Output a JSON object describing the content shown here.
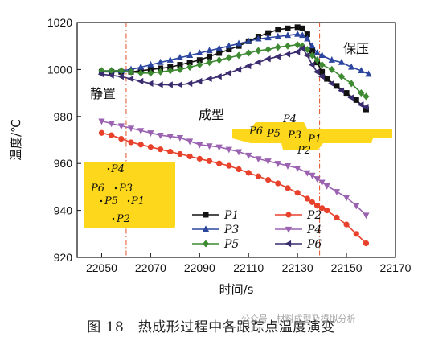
{
  "chart_data": {
    "type": "line",
    "xlabel": "时间/s",
    "ylabel": "温度/℃",
    "xlim": [
      22040,
      22170
    ],
    "ylim": [
      920,
      1020
    ],
    "xticks": [
      22050,
      22070,
      22090,
      22110,
      22130,
      22150,
      22170
    ],
    "yticks": [
      920,
      940,
      960,
      980,
      1000,
      1020
    ],
    "phase_boundaries": [
      22060,
      22139
    ],
    "annotations": [
      "静置",
      "成型",
      "保压"
    ],
    "legend_position": "bottom-right",
    "series": [
      {
        "name": "P1",
        "color": "#111111",
        "marker": "square",
        "x": [
          22050,
          22054,
          22058,
          22062,
          22066,
          22070,
          22074,
          22078,
          22082,
          22086,
          22090,
          22094,
          22098,
          22102,
          22106,
          22110,
          22114,
          22118,
          22122,
          22126,
          22130,
          22132,
          22134,
          22136,
          22138,
          22140,
          22142,
          22146,
          22150,
          22154,
          22158
        ],
        "y": [
          999,
          999,
          999,
          999,
          999.5,
          1000,
          1000.5,
          1001,
          1002,
          1003,
          1004,
          1005.5,
          1007,
          1008.5,
          1010,
          1012,
          1014,
          1015.5,
          1017,
          1017.5,
          1018,
          1017.5,
          1015,
          1008,
          1003,
          999,
          996,
          993,
          990,
          987,
          983
        ]
      },
      {
        "name": "P2",
        "color": "#e8412b",
        "marker": "circle",
        "x": [
          22050,
          22054,
          22058,
          22062,
          22066,
          22070,
          22074,
          22078,
          22082,
          22086,
          22090,
          22094,
          22098,
          22102,
          22106,
          22110,
          22114,
          22118,
          22122,
          22126,
          22130,
          22134,
          22136,
          22138,
          22140,
          22142,
          22146,
          22150,
          22154,
          22158
        ],
        "y": [
          973,
          972,
          970.5,
          969,
          968,
          967,
          966,
          965,
          964,
          963,
          962,
          961,
          960,
          959,
          957.5,
          956,
          954.5,
          953,
          951.5,
          949.5,
          947.5,
          945,
          943.5,
          942,
          941,
          940,
          937,
          934,
          930,
          926
        ]
      },
      {
        "name": "P3",
        "color": "#2c46a0",
        "marker": "triangle-up",
        "x": [
          22050,
          22054,
          22058,
          22062,
          22066,
          22070,
          22074,
          22078,
          22082,
          22086,
          22090,
          22094,
          22098,
          22102,
          22106,
          22110,
          22114,
          22118,
          22122,
          22126,
          22130,
          22132,
          22134,
          22136,
          22138,
          22140,
          22144,
          22148,
          22152,
          22156,
          22159
        ],
        "y": [
          999,
          999.5,
          999.5,
          1000,
          1001,
          1002,
          1003,
          1004,
          1005,
          1006,
          1007,
          1008,
          1009,
          1010,
          1011,
          1012,
          1013,
          1013.5,
          1014,
          1014.5,
          1015,
          1014.5,
          1013,
          1010,
          1007,
          1006,
          1004,
          1003,
          1001,
          999.5,
          998
        ]
      },
      {
        "name": "P4",
        "color": "#9a62b0",
        "marker": "triangle-down",
        "x": [
          22050,
          22054,
          22058,
          22062,
          22066,
          22070,
          22074,
          22078,
          22082,
          22086,
          22090,
          22094,
          22098,
          22102,
          22106,
          22110,
          22114,
          22118,
          22122,
          22126,
          22130,
          22134,
          22136,
          22138,
          22140,
          22142,
          22146,
          22150,
          22154,
          22158
        ],
        "y": [
          978,
          977,
          976,
          975,
          974,
          973,
          972,
          971.5,
          971,
          969.5,
          968,
          967.5,
          967,
          966,
          965,
          963.5,
          962,
          961,
          960,
          959,
          958,
          956,
          955,
          953.5,
          952,
          950.5,
          948,
          945.5,
          942,
          938
        ]
      },
      {
        "name": "P5",
        "color": "#3e8a32",
        "marker": "diamond",
        "x": [
          22050,
          22054,
          22058,
          22062,
          22066,
          22070,
          22074,
          22078,
          22082,
          22086,
          22090,
          22094,
          22098,
          22102,
          22106,
          22110,
          22114,
          22118,
          22122,
          22126,
          22130,
          22132,
          22134,
          22136,
          22138,
          22140,
          22144,
          22148,
          22152,
          22156,
          22158
        ],
        "y": [
          999.5,
          999.5,
          999.5,
          999,
          998.5,
          998.5,
          999,
          999.5,
          1000,
          1001,
          1002,
          1003,
          1004,
          1005,
          1006,
          1007,
          1008,
          1008.5,
          1009.5,
          1010,
          1010.5,
          1010,
          1008.5,
          1006,
          1004,
          1002,
          1000,
          997,
          994,
          990,
          988.5
        ]
      },
      {
        "name": "P6",
        "color": "#3a2c6e",
        "marker": "triangle-left",
        "x": [
          22050,
          22054,
          22058,
          22062,
          22066,
          22070,
          22074,
          22078,
          22082,
          22086,
          22090,
          22094,
          22098,
          22102,
          22106,
          22110,
          22114,
          22118,
          22122,
          22126,
          22130,
          22132,
          22134,
          22136,
          22138,
          22140,
          22144,
          22148,
          22152,
          22156,
          22158
        ],
        "y": [
          998,
          997.5,
          997,
          996,
          995,
          994,
          993.5,
          993.5,
          993.5,
          994,
          995,
          996,
          997,
          998.5,
          1000,
          1001.5,
          1003,
          1004.5,
          1005.5,
          1006.5,
          1007.5,
          1009,
          1006,
          1002,
          999,
          997,
          994,
          991,
          988,
          985,
          984
        ]
      }
    ],
    "insets": [
      {
        "labels": [
          "P4",
          "P6",
          "P5",
          "P3",
          "P1",
          "P2"
        ]
      },
      {
        "labels": [
          "P4",
          "P6",
          "P3",
          "P5",
          "P1",
          "P2"
        ]
      }
    ]
  },
  "caption": "图 18　热成形过程中各跟踪点温度演变",
  "watermark": "公众号 · 材料成型及模拟分析"
}
